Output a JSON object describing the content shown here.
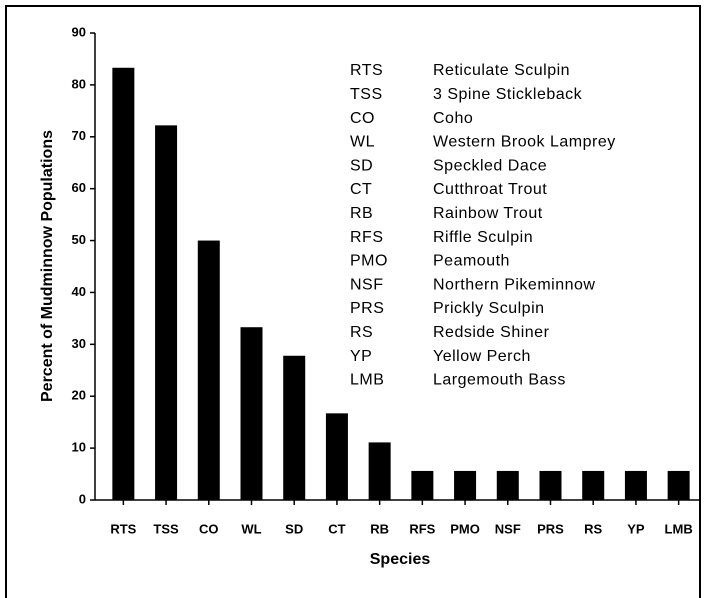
{
  "chart_data": {
    "type": "bar",
    "x_label": "Species",
    "y_label": "Percent of Mudminnow Populations",
    "categories": [
      "RTS",
      "TSS",
      "CO",
      "WL",
      "SD",
      "CT",
      "RB",
      "RFS",
      "PMO",
      "NSF",
      "PRS",
      "RS",
      "YP",
      "LMB"
    ],
    "values": [
      83.3,
      72.2,
      50,
      33.3,
      27.8,
      16.7,
      11.1,
      5.6,
      5.6,
      5.6,
      5.6,
      5.6,
      5.6,
      5.6
    ],
    "color": "#000000",
    "ylim": [
      0,
      90
    ],
    "yticks": [
      0,
      10,
      20,
      30,
      40,
      50,
      60,
      70,
      80,
      90
    ],
    "grid": false,
    "legend": [
      {
        "code": "RTS",
        "name": "Reticulate Sculpin"
      },
      {
        "code": "TSS",
        "name": "3 Spine Stickleback"
      },
      {
        "code": "CO",
        "name": "Coho"
      },
      {
        "code": "WL",
        "name": "Western Brook Lamprey"
      },
      {
        "code": "SD",
        "name": "Speckled Dace"
      },
      {
        "code": "CT",
        "name": "Cutthroat Trout"
      },
      {
        "code": "RB",
        "name": "Rainbow Trout"
      },
      {
        "code": "RFS",
        "name": "Riffle Sculpin"
      },
      {
        "code": "PMO",
        "name": "Peamouth"
      },
      {
        "code": "NSF",
        "name": "Northern Pikeminnow"
      },
      {
        "code": "PRS",
        "name": "Prickly Sculpin"
      },
      {
        "code": "RS",
        "name": "Redside Shiner"
      },
      {
        "code": "YP",
        "name": "Yellow Perch"
      },
      {
        "code": "LMB",
        "name": "Largemouth Bass"
      }
    ]
  }
}
